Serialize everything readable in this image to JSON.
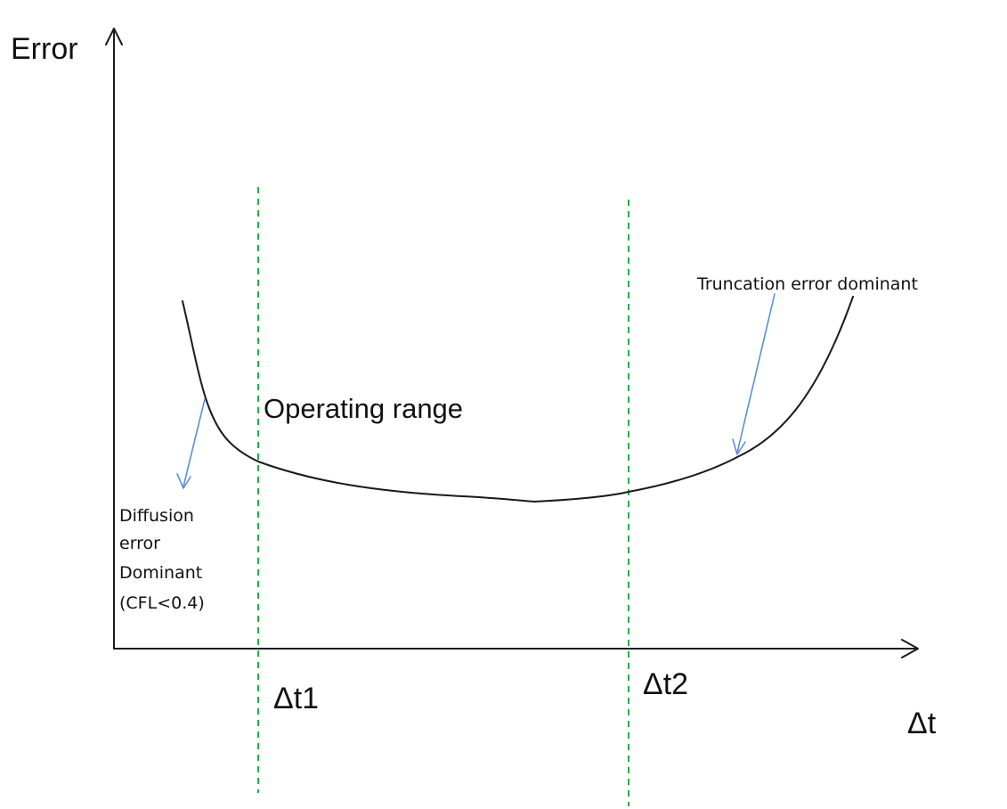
{
  "axes": {
    "y_label": "Error",
    "x_label": "Δt"
  },
  "markers": {
    "dt1_label": "Δt1",
    "dt2_label": "Δt2"
  },
  "annotations": {
    "operating_range": "Operating range",
    "truncation": "Truncation error dominant",
    "diffusion_lines": [
      "Diffusion",
      "error",
      "Dominant",
      "(CFL<0.4)"
    ]
  },
  "colors": {
    "axis": "#1a1a1a",
    "curve": "#1a1a1a",
    "marker_line": "#22b04b",
    "pointer_arrow": "#5b8fd6"
  }
}
